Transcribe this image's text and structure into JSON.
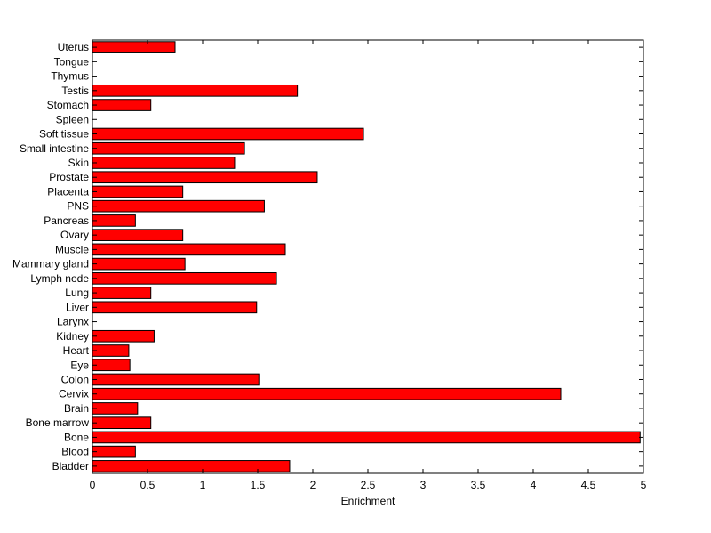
{
  "chart_data": {
    "type": "bar",
    "orientation": "horizontal",
    "title": "",
    "xlabel": "Enrichment",
    "ylabel": "",
    "xlim": [
      0,
      5
    ],
    "xticks": [
      0,
      0.5,
      1,
      1.5,
      2,
      2.5,
      3,
      3.5,
      4,
      4.5,
      5
    ],
    "xtick_labels": [
      "0",
      "0.5",
      "1",
      "1.5",
      "2",
      "2.5",
      "3",
      "3.5",
      "4",
      "4.5",
      "5"
    ],
    "grid": false,
    "bar_color": "#ff0000",
    "bar_edge_color": "#000000",
    "categories": [
      "Bladder",
      "Blood",
      "Bone",
      "Bone marrow",
      "Brain",
      "Cervix",
      "Colon",
      "Eye",
      "Heart",
      "Kidney",
      "Larynx",
      "Liver",
      "Lung",
      "Lymph node",
      "Mammary gland",
      "Muscle",
      "Ovary",
      "Pancreas",
      "PNS",
      "Placenta",
      "Prostate",
      "Skin",
      "Small intestine",
      "Soft tissue",
      "Spleen",
      "Stomach",
      "Testis",
      "Thymus",
      "Tongue",
      "Uterus"
    ],
    "values": [
      1.79,
      0.39,
      4.97,
      0.53,
      0.41,
      4.25,
      1.51,
      0.34,
      0.33,
      0.56,
      0,
      1.49,
      0.53,
      1.67,
      0.84,
      1.75,
      0.82,
      0.39,
      1.56,
      0.82,
      2.04,
      1.29,
      1.38,
      2.46,
      0,
      0.53,
      1.86,
      0,
      0,
      0.75
    ]
  }
}
